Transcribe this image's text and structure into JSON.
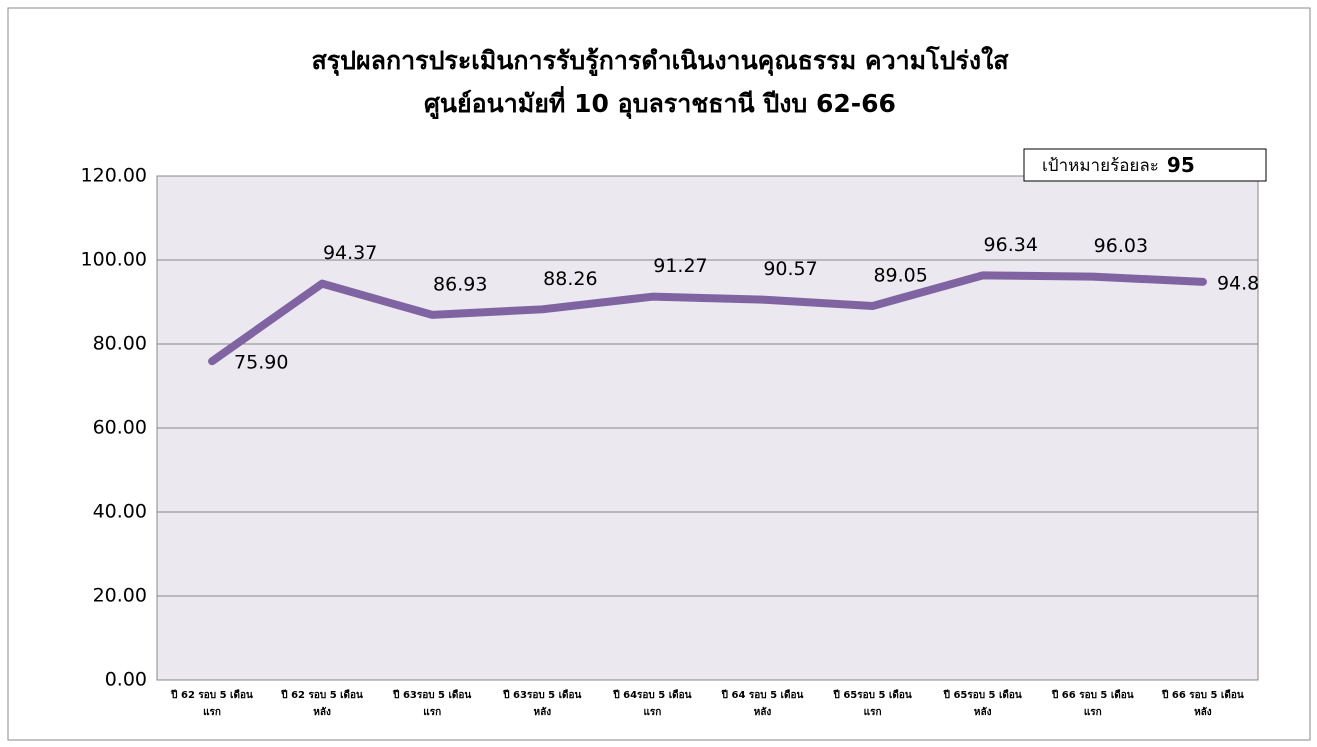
{
  "chart_data": {
    "type": "line",
    "title": [
      "สรุปผลการประเมินการรับรู้การดำเนินงานคุณธรรม  ความโปร่งใส",
      "ศูนย์อนามัยที่ 10 อุบลราชธานี  ปีงบ 62-66"
    ],
    "categories": [
      "ปี 62 รอบ 5 เดือน\nแรก",
      "ปี 62 รอบ 5 เดือน\nหลัง",
      "ปี 63รอบ 5 เดือน\nแรก",
      "ปี 63รอบ 5 เดือน\nหลัง",
      "ปี 64รอบ 5 เดือน\nแรก",
      "ปี 64 รอบ 5 เดือน\nหลัง",
      "ปี 65รอบ 5 เดือน\nแรก",
      "ปี 65รอบ 5 เดือน\nหลัง",
      "ปี 66 รอบ 5 เดือน\nแรก",
      "ปี 66 รอบ 5 เดือน\nหลัง"
    ],
    "values": [
      75.9,
      94.37,
      86.93,
      88.26,
      91.27,
      90.57,
      89.05,
      96.34,
      96.03,
      94.8
    ],
    "value_labels": [
      "75.90",
      "94.37",
      "86.93",
      "88.26",
      "91.27",
      "90.57",
      "89.05",
      "96.34",
      "96.03",
      "94.8"
    ],
    "color": "#8064a2",
    "ylim": [
      0,
      120
    ],
    "yticks": [
      {
        "value": 0,
        "label": "0.00"
      },
      {
        "value": 20,
        "label": "20.00"
      },
      {
        "value": 40,
        "label": "40.00"
      },
      {
        "value": 60,
        "label": "60.00"
      },
      {
        "value": 80,
        "label": "80.00"
      },
      {
        "value": 100,
        "label": "100.00"
      },
      {
        "value": 120,
        "label": "120.00"
      }
    ],
    "grid": true,
    "annotation": {
      "label": "เป้าหมายร้อยละ",
      "value": 95
    }
  }
}
